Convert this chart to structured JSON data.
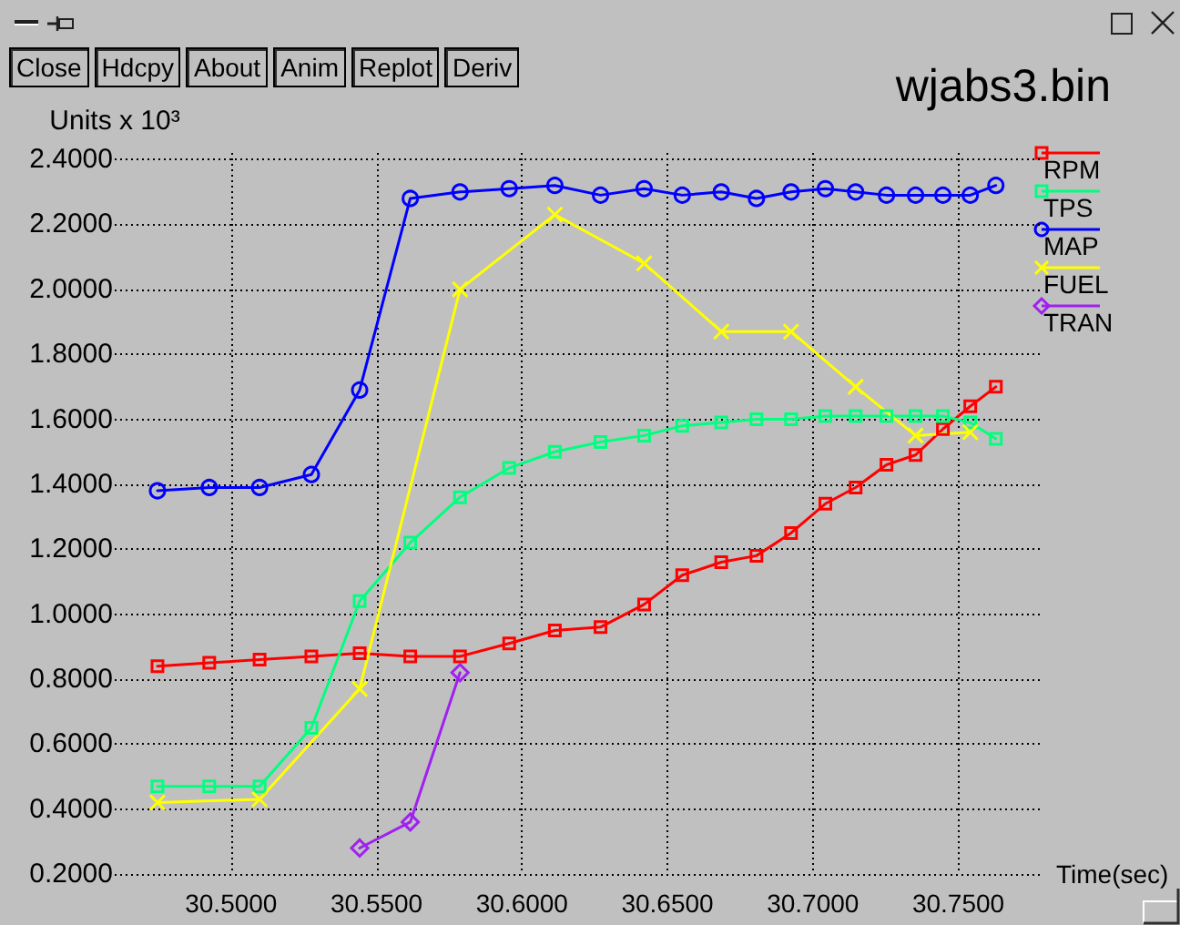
{
  "chart_data": {
    "type": "line",
    "title": "wjabs3.bin",
    "xlabel": "Time(sec)",
    "ylabel": "Units x 10³",
    "annotations": [
      "Close",
      "Hdcpy",
      "About",
      "Anim",
      "Replot",
      "Deriv"
    ],
    "xlim": [
      30.46,
      30.778
    ],
    "ylim": [
      0.2,
      2.42
    ],
    "xticks": [
      {
        "value": 30.5,
        "label": "30.5000"
      },
      {
        "value": 30.55,
        "label": "30.5500"
      },
      {
        "value": 30.6,
        "label": "30.6000"
      },
      {
        "value": 30.65,
        "label": "30.6500"
      },
      {
        "value": 30.7,
        "label": "30.7000"
      },
      {
        "value": 30.75,
        "label": "30.7500"
      }
    ],
    "yticks": [
      {
        "value": 0.2,
        "label": "0.2000"
      },
      {
        "value": 0.4,
        "label": "0.4000"
      },
      {
        "value": 0.6,
        "label": "0.6000"
      },
      {
        "value": 0.8,
        "label": "0.8000"
      },
      {
        "value": 1.0,
        "label": "1.0000"
      },
      {
        "value": 1.2,
        "label": "1.2000"
      },
      {
        "value": 1.4,
        "label": "1.4000"
      },
      {
        "value": 1.6,
        "label": "1.6000"
      },
      {
        "value": 1.8,
        "label": "1.8000"
      },
      {
        "value": 2.0,
        "label": "2.0000"
      },
      {
        "value": 2.2,
        "label": "2.2000"
      },
      {
        "value": 2.4,
        "label": "2.4000"
      }
    ],
    "grid": true,
    "legend": "top right",
    "line_style": "solid",
    "series": [
      {
        "name": "RPM",
        "color": "#ff0000",
        "marker": "square",
        "x": [
          30.4747,
          30.4925,
          30.5098,
          30.5276,
          30.5442,
          30.5616,
          30.5787,
          30.5956,
          30.6113,
          30.627,
          30.642,
          30.6551,
          30.6685,
          30.6806,
          30.6925,
          30.7043,
          30.7147,
          30.7253,
          30.7353,
          30.7447,
          30.7541,
          30.7629
        ],
        "values": [
          0.84,
          0.85,
          0.86,
          0.87,
          0.88,
          0.87,
          0.87,
          0.91,
          0.95,
          0.96,
          1.03,
          1.12,
          1.16,
          1.18,
          1.25,
          1.34,
          1.39,
          1.46,
          1.49,
          1.57,
          1.64,
          1.7
        ]
      },
      {
        "name": "TPS",
        "color": "#00ff7f",
        "marker": "square",
        "x": [
          30.4747,
          30.4925,
          30.5098,
          30.5276,
          30.5442,
          30.5616,
          30.5787,
          30.5956,
          30.6113,
          30.627,
          30.642,
          30.6551,
          30.6685,
          30.6806,
          30.6925,
          30.7043,
          30.7147,
          30.7253,
          30.7353,
          30.7447,
          30.7541,
          30.7629
        ],
        "values": [
          0.47,
          0.47,
          0.47,
          0.65,
          1.04,
          1.22,
          1.36,
          1.45,
          1.5,
          1.53,
          1.55,
          1.58,
          1.59,
          1.6,
          1.6,
          1.61,
          1.61,
          1.61,
          1.61,
          1.61,
          1.59,
          1.54
        ]
      },
      {
        "name": "MAP",
        "color": "#0000ff",
        "marker": "circle",
        "x": [
          30.4747,
          30.4925,
          30.5098,
          30.5276,
          30.5442,
          30.5616,
          30.5787,
          30.5956,
          30.6113,
          30.627,
          30.642,
          30.6551,
          30.6685,
          30.6806,
          30.6925,
          30.7043,
          30.7147,
          30.7253,
          30.7353,
          30.7447,
          30.7541,
          30.7629
        ],
        "values": [
          1.38,
          1.39,
          1.39,
          1.43,
          1.69,
          2.28,
          2.3,
          2.31,
          2.32,
          2.29,
          2.31,
          2.29,
          2.3,
          2.28,
          2.3,
          2.31,
          2.3,
          2.29,
          2.29,
          2.29,
          2.29,
          2.32
        ]
      },
      {
        "name": "FUEL",
        "color": "#ffff00",
        "marker": "cross",
        "x": [
          30.4747,
          30.5098,
          30.5442,
          30.5787,
          30.6113,
          30.642,
          30.6685,
          30.6925,
          30.7147,
          30.7353,
          30.7541
        ],
        "values": [
          0.42,
          0.43,
          0.77,
          2.0,
          2.23,
          2.08,
          1.87,
          1.87,
          1.7,
          1.55,
          1.56
        ]
      },
      {
        "name": "TRAN",
        "color": "#a020f0",
        "marker": "diamond",
        "x": [
          30.5442,
          30.5616,
          30.5787
        ],
        "values": [
          0.28,
          0.36,
          0.82
        ]
      }
    ]
  }
}
